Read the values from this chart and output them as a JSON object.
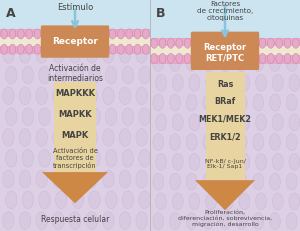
{
  "panel_A": {
    "label": "A",
    "title": "Estímulo",
    "receptor_label": "Receptor",
    "text_above_arrow": "Activación de\nintermediarios",
    "arrow_labels": [
      "MAPKKK",
      "MAPKK",
      "MAPK"
    ],
    "text_in_arrow": "Activación de\nfactores de\ntranscripción",
    "bottom_label": "Respuesta celular"
  },
  "panel_B": {
    "label": "B",
    "title": "Factores\nde crecimiento,\ncitoquinas",
    "receptor_label": "Receptor\nRET/PTC",
    "arrow_labels": [
      "Ras",
      "BRaf",
      "MEK1/MEK2",
      "ERK1/2"
    ],
    "text_in_arrow": "NF-kB/ c-Jun/\nElk-1/ Sap1",
    "bottom_label": "Proliferación,\ndiferenciación, sobrevivencia,\nmigración, desarrollo"
  },
  "colors": {
    "background_lavender": "#ddd0e4",
    "background_blue": "#cce4ef",
    "membrane_pink": "#e8a8c8",
    "membrane_cream": "#f0e8d0",
    "membrane_band": "#d4b8c0",
    "receptor_box": "#cc8855",
    "arrow_body_light": "#e8d4a0",
    "arrow_body_dark": "#d4a860",
    "arrow_head_color": "#cc8844",
    "signal_arrow": "#88c4dc",
    "text_dark": "#444444",
    "bubble_color": "#d8c8e0",
    "bubble_edge": "#c8b8d8"
  }
}
